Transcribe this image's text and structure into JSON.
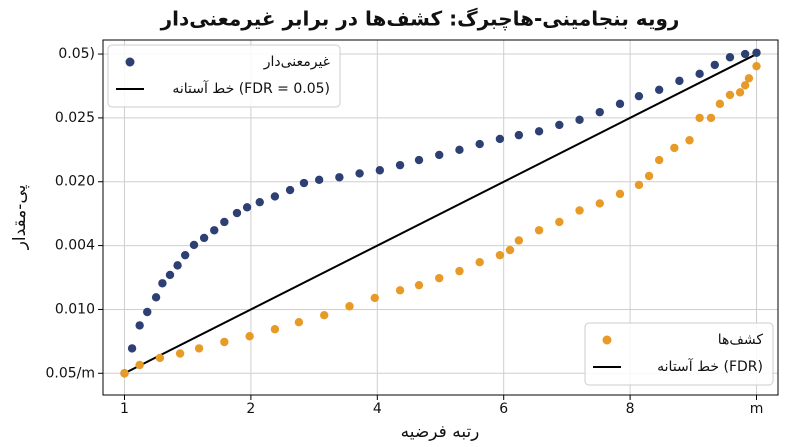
{
  "chart_data": {
    "type": "scatter",
    "title": "رویه بنجامینی-هاچبرگ: کشف‌ها در برابر غیرمعنی‌دار",
    "x_label": "رتبه فرضیه",
    "y_label": "پی-مقدار",
    "xlim": [
      0.83,
      6.17
    ],
    "ylim": [
      -0.34,
      5.22
    ],
    "xticks": [
      1,
      2,
      {
        "value": 3,
        "label": "4"
      },
      {
        "value": 4,
        "label": "6"
      },
      {
        "value": 5,
        "label": "8"
      },
      {
        "value": 6,
        "label": "m"
      }
    ],
    "yticks": [
      {
        "value": 0,
        "label": "0.05/m"
      },
      {
        "value": 1,
        "label": "0.010"
      },
      {
        "value": 2,
        "label": "0.004"
      },
      {
        "value": 3,
        "label": "0.020"
      },
      {
        "value": 4,
        "label": "0.025"
      },
      {
        "value": 5,
        "label": "0.05)"
      }
    ],
    "grid": true,
    "series": [
      {
        "name": "غیرمعنی‌دار",
        "color": "#2e3f73",
        "legend": "upper left",
        "x": [
          1.0,
          1.06,
          1.12,
          1.18,
          1.25,
          1.3,
          1.36,
          1.42,
          1.48,
          1.55,
          1.63,
          1.71,
          1.79,
          1.89,
          1.97,
          2.07,
          2.19,
          2.31,
          2.42,
          2.54,
          2.7,
          2.86,
          3.02,
          3.18,
          3.33,
          3.49,
          3.65,
          3.81,
          3.97,
          4.12,
          4.28,
          4.44,
          4.6,
          4.76,
          4.92,
          5.07,
          5.23,
          5.39,
          5.55,
          5.67,
          5.79,
          5.91,
          6.0
        ],
        "values": [
          0,
          0.39,
          0.75,
          0.96,
          1.19,
          1.41,
          1.54,
          1.69,
          1.85,
          2.01,
          2.12,
          2.24,
          2.37,
          2.51,
          2.6,
          2.68,
          2.77,
          2.87,
          2.98,
          3.03,
          3.07,
          3.13,
          3.18,
          3.26,
          3.34,
          3.42,
          3.5,
          3.59,
          3.67,
          3.73,
          3.79,
          3.89,
          3.97,
          4.09,
          4.22,
          4.34,
          4.44,
          4.58,
          4.69,
          4.83,
          4.95,
          5.0,
          5.02
        ]
      },
      {
        "name": "کشف‌ها",
        "color": "#e89a26",
        "legend": "lower right",
        "x": [
          1.0,
          1.12,
          1.28,
          1.44,
          1.59,
          1.79,
          1.99,
          2.19,
          2.38,
          2.58,
          2.78,
          2.98,
          3.18,
          3.33,
          3.49,
          3.65,
          3.81,
          3.97,
          4.05,
          4.12,
          4.28,
          4.44,
          4.6,
          4.76,
          4.92,
          5.07,
          5.15,
          5.23,
          5.35,
          5.47,
          5.55,
          5.64,
          5.71,
          5.79,
          5.87,
          5.91,
          5.94,
          6.0
        ],
        "values": [
          0,
          0.13,
          0.24,
          0.31,
          0.39,
          0.49,
          0.58,
          0.69,
          0.8,
          0.91,
          1.05,
          1.18,
          1.3,
          1.38,
          1.49,
          1.6,
          1.74,
          1.85,
          1.93,
          2.08,
          2.24,
          2.37,
          2.55,
          2.66,
          2.81,
          2.95,
          3.09,
          3.34,
          3.53,
          3.65,
          4.0,
          4.0,
          4.22,
          4.36,
          4.4,
          4.51,
          4.62,
          4.81
        ]
      }
    ],
    "threshold": {
      "color": "#000000",
      "x": [
        1,
        6
      ],
      "values": [
        0,
        5
      ],
      "names": [
        "خط آستانه (FDR = 0.05)",
        "خط آستانه (FDR)"
      ]
    }
  }
}
